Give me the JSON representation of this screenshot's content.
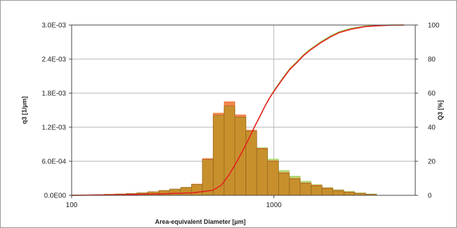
{
  "chart_data": {
    "type": "histogram+line",
    "xlabel": "Area-equivalent Diameter [µm]",
    "ylabel_left": "q3 [1/µm]",
    "ylabel_right": "Q3 [%]",
    "x_scale": "log",
    "xlim": [
      100,
      5000
    ],
    "ylim_left": [
      0,
      0.003
    ],
    "ylim_right": [
      0,
      100
    ],
    "x_ticks": [
      {
        "value": 100,
        "label": "100"
      },
      {
        "value": 1000,
        "label": "1000"
      }
    ],
    "y_ticks_left": [
      {
        "value": 0,
        "label": "0.0E00"
      },
      {
        "value": 0.0006,
        "label": "6.0E-04"
      },
      {
        "value": 0.0012,
        "label": "1.2E-03"
      },
      {
        "value": 0.0018,
        "label": "1.8E-03"
      },
      {
        "value": 0.0024,
        "label": "2.4E-03"
      },
      {
        "value": 0.003,
        "label": "3.0E-03"
      }
    ],
    "y_ticks_right": [
      {
        "value": 0,
        "label": "0"
      },
      {
        "value": 20,
        "label": "20"
      },
      {
        "value": 40,
        "label": "40"
      },
      {
        "value": 60,
        "label": "60"
      },
      {
        "value": 80,
        "label": "80"
      },
      {
        "value": 100,
        "label": "100"
      }
    ],
    "grid": "major vertical at decades, horizontal at left ticks",
    "colors": {
      "bars_fill": "#c8902c",
      "bars_edge": "#7a5618",
      "overlay_orange": "#f07a3a",
      "overlay_green": "#a8cf5a",
      "cumulative_line": "#e62020",
      "cumulative_line2": "#8cc63f",
      "grid": "#9a9a9a",
      "frame": "#444444"
    },
    "bins": {
      "edges": [
        100,
        113,
        128,
        145,
        164,
        186,
        210,
        238,
        270,
        305,
        346,
        391,
        443,
        501,
        567,
        642,
        727,
        823,
        931,
        1054,
        1193,
        1351,
        1529,
        1731,
        1960,
        2218,
        2511,
        2843,
        3218
      ],
      "q3_main": [
        5e-06,
        8e-06,
        1.2e-05,
        1.8e-05,
        2.4e-05,
        3.2e-05,
        4.5e-05,
        6.2e-05,
        8.5e-05,
        0.00011,
        0.00014,
        0.00019,
        0.00063,
        0.00141,
        0.00157,
        0.00138,
        0.00113,
        0.00082,
        0.0006,
        0.00039,
        0.00029,
        0.00021,
        0.00017,
        0.00012,
        8.5e-05,
        5.5e-05,
        3.5e-05,
        1.8e-05
      ],
      "q3_orange": [
        5e-06,
        8e-06,
        1.2e-05,
        1.8e-05,
        2.4e-05,
        3.2e-05,
        4.5e-05,
        6.2e-05,
        8.5e-05,
        0.00011,
        0.00014,
        0.0002,
        0.00065,
        0.00145,
        0.00165,
        0.00142,
        0.00115,
        0.00083,
        0.00061,
        0.0004,
        0.0003,
        0.00022,
        0.00018,
        0.00013,
        9e-05,
        6e-05,
        3.8e-05,
        2e-05
      ],
      "q3_green": [
        5e-06,
        8e-06,
        1.2e-05,
        1.8e-05,
        2.4e-05,
        3.2e-05,
        4.5e-05,
        6.2e-05,
        8.5e-05,
        0.00011,
        0.00014,
        0.00019,
        0.00062,
        0.00138,
        0.00152,
        0.00135,
        0.00112,
        0.00084,
        0.00064,
        0.00044,
        0.00034,
        0.00025,
        0.00019,
        0.00014,
        0.0001,
        7e-05,
        4.5e-05,
        2.5e-05
      ]
    },
    "series": [
      {
        "x": [
          100,
          200,
          300,
          400,
          500,
          550,
          600,
          650,
          700,
          750,
          800,
          850,
          900,
          950,
          1000,
          1100,
          1200,
          1300,
          1400,
          1500,
          1700,
          1900,
          2100,
          2400,
          2800,
          3200,
          3800,
          4400
        ],
        "y": [
          0,
          0.5,
          1,
          1.5,
          3,
          6,
          12,
          19,
          26,
          33,
          40,
          46,
          52,
          57,
          61,
          68,
          74,
          78,
          82,
          85,
          89.5,
          93,
          95.5,
          97.5,
          99,
          99.5,
          99.9,
          100
        ]
      },
      {
        "x": [
          100,
          200,
          300,
          400,
          500,
          550,
          600,
          650,
          700,
          750,
          800,
          850,
          900,
          950,
          1000,
          1100,
          1200,
          1300,
          1400,
          1500,
          1700,
          1900,
          2100,
          2400,
          2800,
          3200,
          3800,
          4400
        ],
        "y": [
          0,
          0.5,
          1,
          1.5,
          3,
          6,
          12,
          19,
          26,
          33,
          40,
          46,
          52,
          57,
          61.5,
          68.5,
          74.5,
          78.5,
          82.5,
          85.5,
          90,
          93.5,
          96,
          98,
          99.3,
          99.7,
          100,
          100
        ]
      }
    ]
  }
}
